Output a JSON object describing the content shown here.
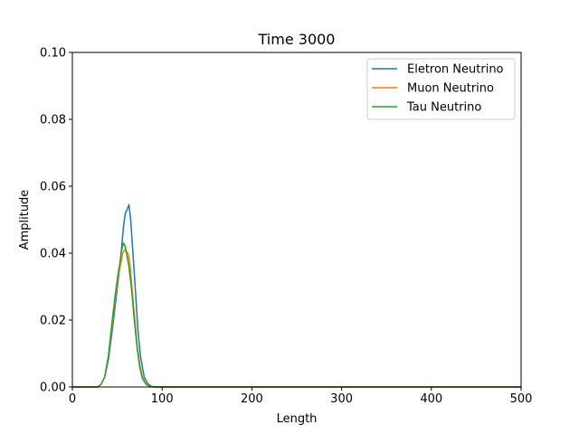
{
  "chart_data": {
    "type": "line",
    "title": "Time 3000",
    "xlabel": "Length",
    "ylabel": "Amplitude",
    "xlim": [
      0,
      500
    ],
    "ylim": [
      0,
      0.1
    ],
    "xticks": [
      0,
      100,
      200,
      300,
      400,
      500
    ],
    "xtick_labels": [
      "0",
      "100",
      "200",
      "300",
      "400",
      "500"
    ],
    "yticks": [
      0,
      0.02,
      0.04,
      0.06,
      0.08,
      0.1
    ],
    "ytick_labels": [
      "0.00",
      "0.02",
      "0.04",
      "0.06",
      "0.08",
      "0.10"
    ],
    "grid": false,
    "legend_position": "top-right",
    "series": [
      {
        "name": "Eletron Neutrino",
        "color": "#1f77b4",
        "x": [
          0,
          28,
          32,
          36,
          40,
          44,
          48,
          52,
          55,
          57,
          59,
          61,
          63,
          65,
          67,
          70,
          73,
          76,
          80,
          84,
          88,
          92,
          100,
          500
        ],
        "y": [
          0,
          0,
          0.0008,
          0.003,
          0.008,
          0.016,
          0.025,
          0.034,
          0.042,
          0.048,
          0.052,
          0.053,
          0.0545,
          0.05,
          0.042,
          0.03,
          0.017,
          0.009,
          0.003,
          0.001,
          0.0002,
          0,
          0,
          0
        ]
      },
      {
        "name": "Muon Neutrino",
        "color": "#ff7f0e",
        "x": [
          0,
          28,
          32,
          36,
          40,
          44,
          48,
          51,
          54,
          56,
          58,
          60,
          62,
          64,
          66,
          69,
          72,
          75,
          78,
          82,
          86,
          90,
          100,
          500
        ],
        "y": [
          0,
          0,
          0.0008,
          0.003,
          0.009,
          0.018,
          0.027,
          0.033,
          0.037,
          0.04,
          0.041,
          0.0405,
          0.04,
          0.037,
          0.031,
          0.022,
          0.013,
          0.007,
          0.003,
          0.001,
          0.0002,
          0,
          0,
          0
        ]
      },
      {
        "name": "Tau Neutrino",
        "color": "#2ca02c",
        "x": [
          0,
          28,
          32,
          36,
          40,
          44,
          48,
          51,
          53,
          55,
          57,
          59,
          61,
          63,
          66,
          69,
          72,
          75,
          78,
          82,
          86,
          90,
          100,
          500
        ],
        "y": [
          0,
          0,
          0.0008,
          0.003,
          0.009,
          0.019,
          0.028,
          0.034,
          0.037,
          0.041,
          0.043,
          0.042,
          0.039,
          0.036,
          0.029,
          0.02,
          0.012,
          0.006,
          0.0025,
          0.0008,
          0.0002,
          0,
          0,
          0
        ]
      }
    ]
  }
}
